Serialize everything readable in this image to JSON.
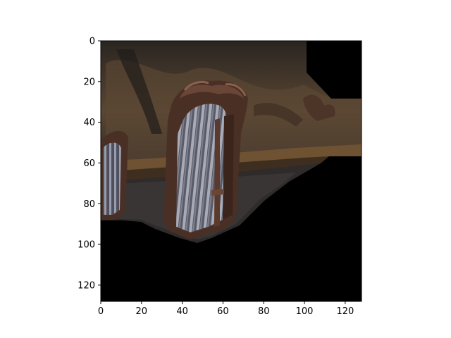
{
  "chart_data": {
    "type": "image",
    "title": "",
    "xlabel": "",
    "ylabel": "",
    "xlim": [
      0,
      128
    ],
    "ylim": [
      128,
      0
    ],
    "x_ticks": [
      0,
      20,
      40,
      60,
      80,
      100,
      120
    ],
    "y_ticks": [
      0,
      20,
      40,
      60,
      80,
      100,
      120
    ],
    "image_content": "ornate-chair-backs-photo",
    "colors": {
      "background": "#000000",
      "wall_dark": "#2b2724",
      "wall_warm": "#5a4632",
      "wood_rail": "#6e5232",
      "chair_wood": "#4a2f25",
      "chair_slat_light": "#a8aab6",
      "chair_slat_dark": "#585a68"
    }
  }
}
